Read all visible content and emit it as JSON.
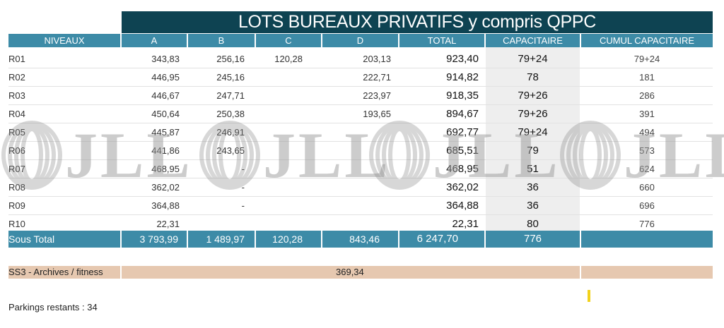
{
  "title": "LOTS BUREAUX PRIVATIFS y compris QPPC",
  "headers": {
    "niveaux": "NIVEAUX",
    "a": "A",
    "b": "B",
    "c": "C",
    "d": "D",
    "total": "TOTAL",
    "capacitaire": "CAPACITAIRE",
    "cumul": "CUMUL CAPACITAIRE"
  },
  "rows": [
    {
      "label": "R01",
      "a": "343,83",
      "b": "256,16",
      "c": "120,28",
      "d": "203,13",
      "total": "923,40",
      "cap": "79+24",
      "cumul": "79+24"
    },
    {
      "label": "R02",
      "a": "446,95",
      "b": "245,16",
      "c": "",
      "d": "222,71",
      "total": "914,82",
      "cap": "78",
      "cumul": "181"
    },
    {
      "label": "R03",
      "a": "446,67",
      "b": "247,71",
      "c": "",
      "d": "223,97",
      "total": "918,35",
      "cap": "79+26",
      "cumul": "286"
    },
    {
      "label": "R04",
      "a": "450,64",
      "b": "250,38",
      "c": "",
      "d": "193,65",
      "total": "894,67",
      "cap": "79+26",
      "cumul": "391"
    },
    {
      "label": "R05",
      "a": "445,87",
      "b": "246,91",
      "c": "",
      "d": "",
      "total": "692,77",
      "cap": "79+24",
      "cumul": "494"
    },
    {
      "label": "R06",
      "a": "441,86",
      "b": "243,65",
      "c": "",
      "d": "",
      "total": "685,51",
      "cap": "79",
      "cumul": "573"
    },
    {
      "label": "R07",
      "a": "468,95",
      "b": "-",
      "c": "",
      "d": "",
      "total": "468,95",
      "cap": "51",
      "cumul": "624"
    },
    {
      "label": "R08",
      "a": "362,02",
      "b": "-",
      "c": "",
      "d": "",
      "total": "362,02",
      "cap": "36",
      "cumul": "660"
    },
    {
      "label": "R09",
      "a": "364,88",
      "b": "-",
      "c": "",
      "d": "",
      "total": "364,88",
      "cap": "36",
      "cumul": "696"
    },
    {
      "label": "R10",
      "a": "22,31",
      "b": "",
      "c": "",
      "d": "",
      "total": "22,31",
      "cap": "80",
      "cumul": "776"
    }
  ],
  "subtotal": {
    "label": "Sous Total",
    "a": "3 793,99",
    "b": "1 489,97",
    "c": "120,28",
    "d": "843,46",
    "total": "6 247,70",
    "cap": "776"
  },
  "ss3": {
    "label": "SS3 - Archives / fitness",
    "value": "369,34"
  },
  "parking": "Parkings restants  : 34",
  "watermark": "JLL",
  "colors": {
    "title_bg": "#0e4352",
    "header_bg": "#3d8ba7",
    "ss3_bg": "#e6c8b0",
    "cap_shade": "#eeeeee",
    "marker": "#f2d21b"
  }
}
